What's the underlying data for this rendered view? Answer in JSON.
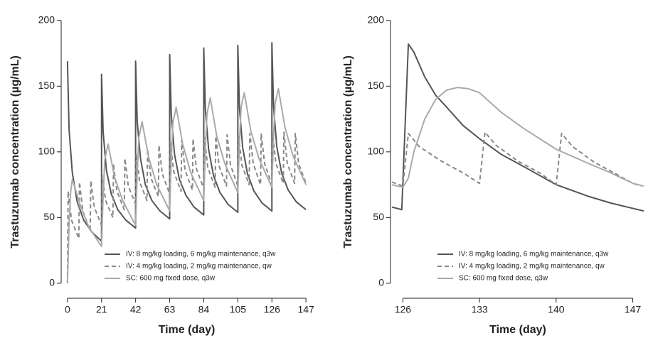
{
  "chart_data": [
    {
      "type": "line",
      "xlabel": "Time (day)",
      "ylabel": "Trastuzumab concentration (µg/mL)",
      "xlim": [
        -3,
        150
      ],
      "xticks": [
        0,
        21,
        42,
        63,
        84,
        105,
        126,
        147
      ],
      "ylim": [
        -6,
        208
      ],
      "yticks": [
        0,
        50,
        100,
        150,
        200
      ],
      "legend": "lower right",
      "series": [
        {
          "name": "IV: 8 mg/kg loading, 6 mg/kg maintenance, q3w",
          "color": "#555555",
          "linestyle": "solid",
          "x": [
            0,
            1,
            3,
            6,
            10,
            15,
            21,
            21,
            22,
            24,
            27,
            31,
            36,
            42,
            42,
            43,
            45,
            48,
            52,
            57,
            63,
            63,
            64,
            66,
            69,
            73,
            78,
            84,
            84,
            85,
            87,
            90,
            94,
            99,
            105,
            105,
            106,
            108,
            111,
            115,
            120,
            126,
            126,
            127,
            129,
            132,
            136,
            141,
            147
          ],
          "values": [
            169,
            117,
            84,
            62,
            48,
            39,
            32,
            159,
            115,
            86,
            68,
            56,
            48,
            42,
            169,
            123,
            95,
            75,
            63,
            55,
            49,
            174,
            128,
            98,
            79,
            67,
            58,
            52,
            179,
            132,
            102,
            82,
            69,
            60,
            54,
            181,
            133,
            103,
            83,
            70,
            61,
            55,
            183,
            135,
            104,
            84,
            71,
            62,
            56
          ]
        },
        {
          "name": "IV: 4 mg/kg loading, 2 mg/kg maintenance, qw",
          "color": "#888888",
          "linestyle": "dashed",
          "x": [
            0,
            0.4,
            2.5,
            7,
            7.4,
            9.5,
            14,
            14.4,
            16.5,
            21,
            21.4,
            23.5,
            28,
            28.4,
            30.5,
            35,
            35.4,
            37.5,
            42,
            42.4,
            44.5,
            49,
            49.4,
            51.5,
            56,
            56.4,
            58.5,
            63,
            63.4,
            65.5,
            70,
            70.4,
            72.5,
            77,
            77.4,
            79.5,
            84,
            84.4,
            86.5,
            91,
            91.4,
            93.5,
            98,
            98.4,
            100.5,
            105,
            105.4,
            107.5,
            112,
            112.4,
            114.5,
            119,
            119.4,
            121.5,
            126,
            126.4,
            128.5,
            133,
            133.4,
            135.5,
            140,
            140.4,
            142.5,
            147
          ],
          "values": [
            0,
            70,
            48,
            34,
            77,
            55,
            40,
            78,
            58,
            44,
            82,
            63,
            50,
            90,
            70,
            56,
            95,
            74,
            60,
            99,
            77,
            63,
            102,
            80,
            66,
            105,
            83,
            68,
            107,
            85,
            70,
            109,
            86,
            71,
            110,
            87,
            72,
            111,
            88,
            73,
            112,
            89,
            74,
            113,
            90,
            74,
            113,
            90,
            75,
            114,
            91,
            75,
            114,
            91,
            75,
            114,
            91,
            76,
            115,
            91,
            76,
            114,
            91,
            76
          ]
        },
        {
          "name": "SC: 600 mg fixed dose, q3w",
          "color": "#aaaaaa",
          "linestyle": "solid",
          "x": [
            0,
            1,
            2,
            3,
            8,
            13,
            21,
            22,
            23,
            25,
            29,
            34,
            42,
            43,
            44,
            46,
            50,
            55,
            63,
            64,
            65,
            67,
            71,
            76,
            84,
            85,
            86,
            88,
            92,
            97,
            105,
            106,
            107,
            109,
            113,
            118,
            126,
            127,
            128,
            130,
            134,
            139,
            147
          ],
          "values": [
            0,
            45,
            70,
            79,
            59,
            43,
            28,
            67,
            94,
            106,
            81,
            63,
            44,
            84,
            111,
            123,
            96,
            75,
            55,
            95,
            122,
            134,
            106,
            84,
            63,
            102,
            129,
            141,
            112,
            91,
            69,
            107,
            134,
            145,
            116,
            95,
            73,
            111,
            137,
            148,
            119,
            97,
            75
          ]
        }
      ]
    },
    {
      "type": "line",
      "xlabel": "Time (day)",
      "ylabel": "Trastuzumab concentration (µg/mL)",
      "xlim": [
        125,
        148
      ],
      "xticks": [
        126,
        133,
        140,
        147
      ],
      "ylim": [
        -6,
        208
      ],
      "yticks": [
        0,
        50,
        100,
        150,
        200
      ],
      "legend": "lower right",
      "series": [
        {
          "name": "IV: 8 mg/kg loading, 6 mg/kg maintenance, q3w",
          "color": "#555555",
          "linestyle": "solid",
          "x": [
            125,
            125.9,
            126.5,
            127,
            128,
            129,
            130,
            131.5,
            133,
            135,
            137,
            140,
            143,
            145,
            147,
            148
          ],
          "values": [
            58,
            56,
            182,
            176,
            157,
            143,
            134,
            120,
            110,
            98,
            89,
            75,
            66,
            61,
            57,
            55
          ]
        },
        {
          "name": "IV: 4 mg/kg loading, 2 mg/kg maintenance, qw",
          "color": "#888888",
          "linestyle": "dashed",
          "x": [
            125,
            126,
            126.5,
            127.5,
            129.5,
            131.5,
            133,
            133.5,
            134.5,
            136.5,
            138.5,
            140,
            140.5,
            141.5,
            143.5,
            145.5,
            147,
            147.8
          ],
          "values": [
            77,
            74,
            114,
            104,
            93,
            84,
            76,
            115,
            105,
            93,
            84,
            75,
            114,
            104,
            92,
            83,
            76,
            74
          ]
        },
        {
          "name": "SC: 600 mg fixed dose, q3w",
          "color": "#aaaaaa",
          "linestyle": "solid",
          "x": [
            125,
            126,
            126.5,
            127,
            128,
            129,
            130,
            131,
            132,
            133,
            135,
            137,
            140,
            143,
            145,
            147,
            148
          ],
          "values": [
            75,
            73,
            80,
            100,
            125,
            140,
            147,
            149,
            148,
            145,
            130,
            118,
            102,
            91,
            84,
            76,
            74
          ]
        }
      ]
    }
  ]
}
